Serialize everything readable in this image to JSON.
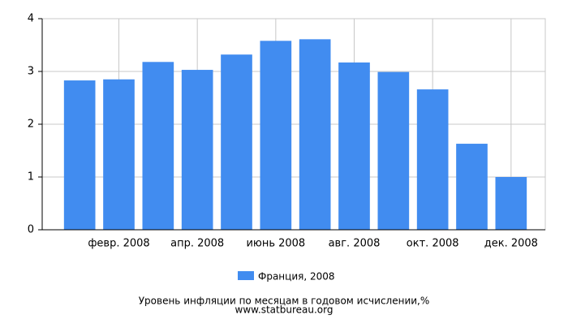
{
  "chart_data": {
    "type": "bar",
    "title": "Уровень инфляции по месяцам в годовом исчислении,%",
    "subtitle": "www.statbureau.org",
    "categories": [
      null,
      "февр. 2008",
      null,
      "апр. 2008",
      null,
      "июнь 2008",
      null,
      "авг. 2008",
      null,
      "окт. 2008",
      null,
      "дек. 2008"
    ],
    "series": [
      {
        "name": "Франция, 2008",
        "color": "#418cf0",
        "values": [
          2.83,
          2.85,
          3.18,
          3.03,
          3.32,
          3.58,
          3.61,
          3.17,
          2.99,
          2.66,
          1.63,
          1.0
        ]
      }
    ],
    "ylim": [
      0,
      4
    ],
    "yticks": [
      0,
      1,
      2,
      3,
      4
    ],
    "grid": true,
    "legend": "bottom"
  }
}
